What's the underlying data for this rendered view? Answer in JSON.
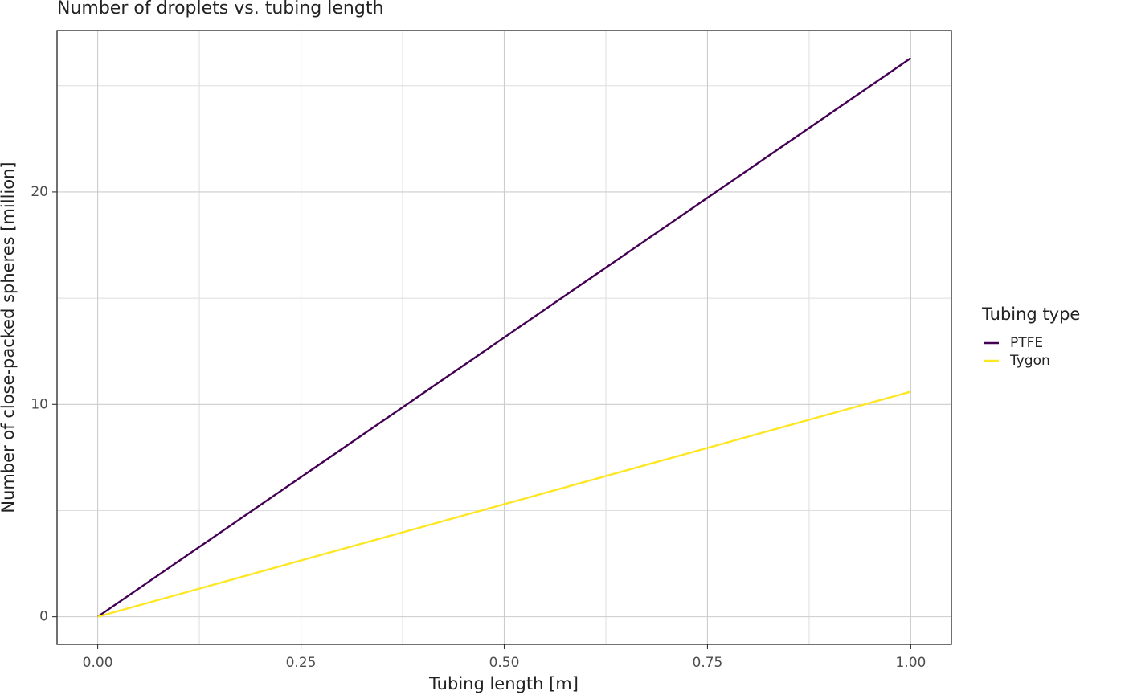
{
  "chart_data": {
    "type": "line",
    "title": "Number of droplets vs. tubing length",
    "x_label": "Tubing length [m]",
    "y_label": "Number of close-packed spheres [million]",
    "legend_title": "Tubing type",
    "legend_position": "right",
    "grid": true,
    "x": [
      0,
      1
    ],
    "series": [
      {
        "name": "PTFE",
        "color": "#440154",
        "values": [
          0,
          26.3
        ]
      },
      {
        "name": "Tygon",
        "color": "#FDE725",
        "values": [
          0,
          10.6
        ]
      }
    ],
    "xlim": [
      -0.05,
      1.05
    ],
    "xticks": [
      {
        "value": 0,
        "label": "0.00"
      },
      0.25,
      {
        "value": 0.5,
        "label": "0.50"
      },
      0.75,
      {
        "value": 1,
        "label": "1.00"
      }
    ],
    "xminorticks": [
      0.125,
      0.375,
      0.625,
      0.875
    ],
    "ylim": [
      -1.3,
      27.6
    ],
    "yticks": [
      0,
      10,
      20
    ],
    "yminorticks": [
      5,
      15,
      25
    ]
  }
}
